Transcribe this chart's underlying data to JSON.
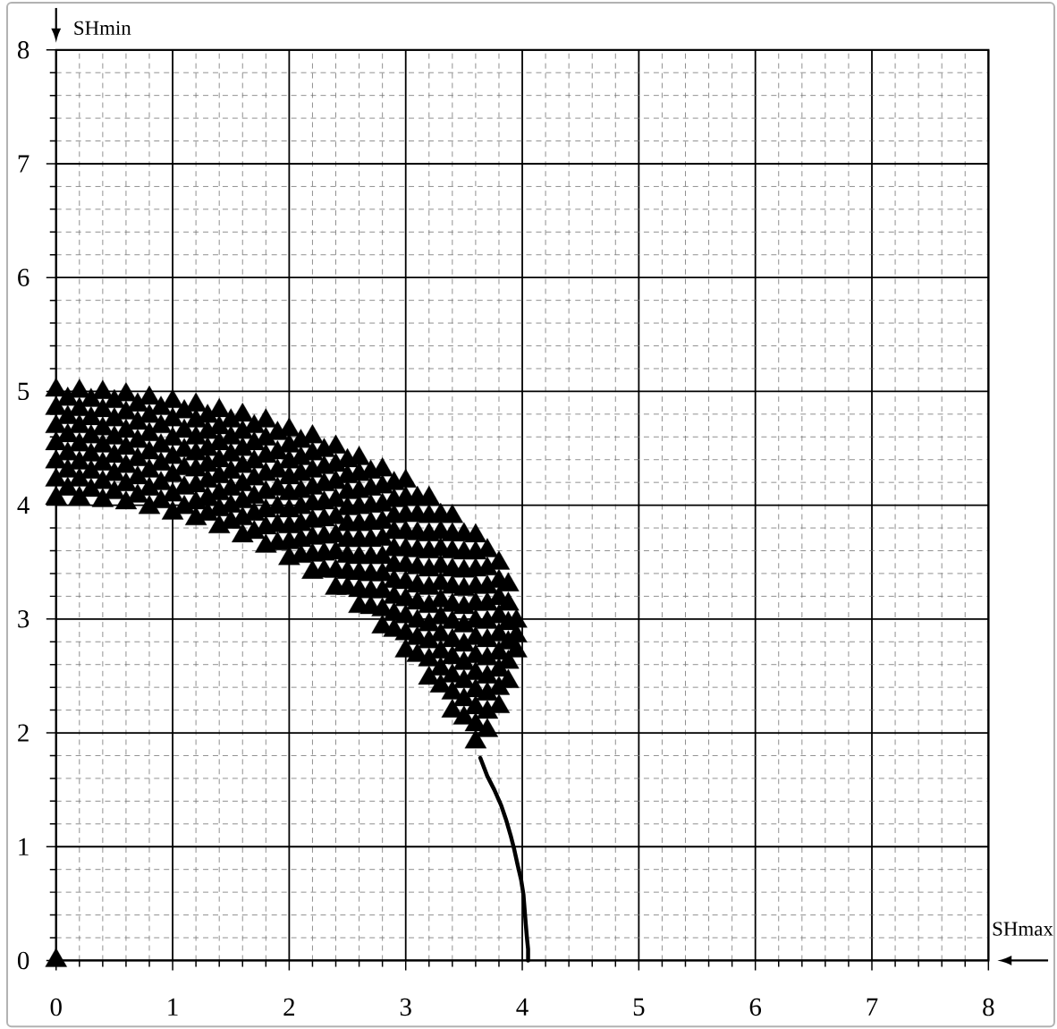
{
  "chart_data": {
    "type": "scatter",
    "xlabel": "SHmax",
    "ylabel": "SHmin",
    "xlim": [
      0,
      8
    ],
    "ylim": [
      0,
      8
    ],
    "xticks": [
      0,
      1,
      2,
      3,
      4,
      5,
      6,
      7,
      8
    ],
    "yticks": [
      0,
      1,
      2,
      3,
      4,
      5,
      6,
      7,
      8
    ],
    "grid": true,
    "series": [
      {
        "color": "#000000",
        "marker": "triangle",
        "x": [
          0,
          0,
          0,
          0,
          0,
          0,
          0,
          0,
          0.1,
          0.1,
          0.1,
          0.1,
          0.1,
          0.1,
          0.2,
          0.2,
          0.2,
          0.2,
          0.2,
          0.2,
          0.2,
          0.3,
          0.3,
          0.3,
          0.3,
          0.3,
          0.3,
          0.4,
          0.4,
          0.4,
          0.4,
          0.4,
          0.4,
          0.4,
          0.5,
          0.5,
          0.5,
          0.5,
          0.5,
          0.5,
          0.6,
          0.6,
          0.6,
          0.6,
          0.6,
          0.6,
          0.6,
          0.7,
          0.7,
          0.7,
          0.7,
          0.7,
          0.7,
          0.8,
          0.8,
          0.8,
          0.8,
          0.8,
          0.8,
          0.8,
          0.9,
          0.9,
          0.9,
          0.9,
          0.9,
          0.9,
          1,
          1,
          1,
          1,
          1,
          1,
          1,
          1.1,
          1.1,
          1.1,
          1.1,
          1.1,
          1.1,
          1.2,
          1.2,
          1.2,
          1.2,
          1.2,
          1.2,
          1.2,
          1.2,
          1.3,
          1.3,
          1.3,
          1.3,
          1.3,
          1.3,
          1.3,
          1.4,
          1.4,
          1.4,
          1.4,
          1.4,
          1.4,
          1.4,
          1.4,
          1.5,
          1.5,
          1.5,
          1.5,
          1.5,
          1.5,
          1.5,
          1.6,
          1.6,
          1.6,
          1.6,
          1.6,
          1.6,
          1.6,
          1.6,
          1.7,
          1.7,
          1.7,
          1.7,
          1.7,
          1.7,
          1.7,
          1.8,
          1.8,
          1.8,
          1.8,
          1.8,
          1.8,
          1.8,
          1.8,
          1.9,
          1.9,
          1.9,
          1.9,
          1.9,
          1.9,
          1.9,
          2,
          2,
          2,
          2,
          2,
          2,
          2,
          2,
          2,
          2.1,
          2.1,
          2.1,
          2.1,
          2.1,
          2.1,
          2.1,
          2.1,
          2.2,
          2.2,
          2.2,
          2.2,
          2.2,
          2.2,
          2.2,
          2.2,
          2.2,
          2.3,
          2.3,
          2.3,
          2.3,
          2.3,
          2.3,
          2.3,
          2.3,
          2.4,
          2.4,
          2.4,
          2.4,
          2.4,
          2.4,
          2.4,
          2.4,
          2.4,
          2.5,
          2.5,
          2.5,
          2.5,
          2.5,
          2.5,
          2.5,
          2.5,
          2.5,
          2.6,
          2.6,
          2.6,
          2.6,
          2.6,
          2.6,
          2.6,
          2.6,
          2.6,
          2.6,
          2.7,
          2.7,
          2.7,
          2.7,
          2.7,
          2.7,
          2.7,
          2.7,
          2.7,
          2.8,
          2.8,
          2.8,
          2.8,
          2.8,
          2.8,
          2.8,
          2.8,
          2.8,
          2.8,
          2.9,
          2.9,
          2.9,
          2.9,
          2.9,
          2.9,
          2.9,
          2.9,
          2.9,
          2.9,
          3,
          3,
          3,
          3,
          3,
          3,
          3,
          3,
          3,
          3,
          3,
          3.1,
          3.1,
          3.1,
          3.1,
          3.1,
          3.1,
          3.1,
          3.1,
          3.1,
          3.1,
          3.2,
          3.2,
          3.2,
          3.2,
          3.2,
          3.2,
          3.2,
          3.2,
          3.2,
          3.2,
          3.2,
          3.3,
          3.3,
          3.3,
          3.3,
          3.3,
          3.3,
          3.3,
          3.3,
          3.3,
          3.3,
          3.3,
          3.4,
          3.4,
          3.4,
          3.4,
          3.4,
          3.4,
          3.4,
          3.4,
          3.4,
          3.4,
          3.4,
          3.4,
          3.5,
          3.5,
          3.5,
          3.5,
          3.5,
          3.5,
          3.5,
          3.5,
          3.5,
          3.5,
          3.5,
          3.6,
          3.6,
          3.6,
          3.6,
          3.6,
          3.6,
          3.6,
          3.6,
          3.6,
          3.6,
          3.6,
          3.6,
          3.6,
          3.7,
          3.7,
          3.7,
          3.7,
          3.7,
          3.7,
          3.7,
          3.7,
          3.7,
          3.7,
          3.7,
          3.8,
          3.8,
          3.8,
          3.8,
          3.8,
          3.8,
          3.8,
          3.8,
          3.8,
          3.88,
          3.88,
          3.88,
          3.88,
          3.88,
          3.88,
          3.95,
          3.95,
          3.95
        ],
        "values": [
          0,
          4.06,
          4.22,
          4.38,
          4.54,
          4.69,
          4.85,
          5.01,
          4.14,
          4.3,
          4.45,
          4.61,
          4.77,
          4.93,
          4.06,
          4.22,
          4.37,
          4.53,
          4.69,
          4.84,
          5.0,
          4.13,
          4.29,
          4.44,
          4.6,
          4.76,
          4.92,
          4.04,
          4.2,
          4.36,
          4.52,
          4.67,
          4.83,
          4.99,
          4.11,
          4.27,
          4.43,
          4.59,
          4.75,
          4.91,
          4.02,
          4.18,
          4.34,
          4.5,
          4.65,
          4.81,
          4.97,
          4.08,
          4.24,
          4.4,
          4.56,
          4.72,
          4.88,
          3.98,
          4.14,
          4.3,
          4.46,
          4.62,
          4.78,
          4.94,
          4.03,
          4.19,
          4.36,
          4.52,
          4.69,
          4.85,
          3.93,
          4.09,
          4.26,
          4.42,
          4.58,
          4.75,
          4.91,
          3.98,
          4.15,
          4.32,
          4.48,
          4.65,
          4.82,
          3.88,
          4.02,
          4.17,
          4.31,
          4.45,
          4.59,
          4.74,
          4.88,
          3.92,
          4.06,
          4.21,
          4.35,
          4.49,
          4.64,
          4.78,
          3.81,
          3.96,
          4.1,
          4.25,
          4.39,
          4.54,
          4.68,
          4.83,
          3.85,
          3.99,
          4.14,
          4.29,
          4.44,
          4.59,
          4.74,
          3.73,
          3.88,
          4.03,
          4.18,
          4.34,
          4.49,
          4.64,
          4.79,
          3.76,
          3.92,
          4.07,
          4.23,
          4.38,
          4.54,
          4.69,
          3.64,
          3.8,
          3.95,
          4.11,
          4.27,
          4.43,
          4.58,
          4.74,
          3.66,
          3.82,
          3.98,
          4.14,
          4.3,
          4.46,
          4.63,
          3.53,
          3.67,
          3.81,
          3.95,
          4.1,
          4.24,
          4.38,
          4.52,
          4.66,
          3.55,
          3.69,
          3.83,
          3.98,
          4.12,
          4.27,
          4.41,
          4.56,
          3.41,
          3.56,
          3.71,
          3.86,
          4.01,
          4.15,
          4.3,
          4.45,
          4.6,
          3.42,
          3.57,
          3.72,
          3.87,
          4.02,
          4.18,
          4.33,
          4.48,
          3.27,
          3.42,
          3.58,
          3.73,
          3.89,
          4.04,
          4.2,
          4.35,
          4.51,
          3.27,
          3.41,
          3.55,
          3.69,
          3.83,
          3.97,
          4.11,
          4.25,
          4.39,
          3.11,
          3.25,
          3.4,
          3.54,
          3.69,
          3.83,
          3.98,
          4.12,
          4.27,
          4.41,
          3.1,
          3.24,
          3.39,
          3.54,
          3.69,
          3.84,
          3.99,
          4.14,
          4.29,
          2.93,
          3.08,
          3.24,
          3.39,
          3.54,
          3.7,
          3.85,
          4.0,
          4.16,
          4.31,
          2.9,
          3.04,
          3.19,
          3.33,
          3.47,
          3.61,
          3.76,
          3.9,
          4.04,
          4.19,
          2.72,
          2.87,
          3.02,
          3.17,
          3.32,
          3.47,
          3.61,
          3.76,
          3.91,
          4.06,
          4.21,
          2.68,
          2.83,
          2.98,
          3.14,
          3.29,
          3.45,
          3.6,
          3.75,
          3.91,
          4.06,
          2.48,
          2.64,
          2.8,
          2.95,
          3.11,
          3.27,
          3.43,
          3.59,
          3.74,
          3.9,
          4.06,
          2.41,
          2.56,
          2.71,
          2.86,
          3.01,
          3.16,
          3.31,
          3.46,
          3.61,
          3.76,
          3.91,
          2.19,
          2.35,
          2.5,
          2.66,
          2.81,
          2.97,
          3.12,
          3.28,
          3.43,
          3.59,
          3.74,
          3.9,
          2.13,
          2.29,
          2.45,
          2.61,
          2.77,
          2.94,
          3.1,
          3.26,
          3.42,
          3.58,
          3.74,
          1.92,
          2.07,
          2.22,
          2.37,
          2.52,
          2.67,
          2.83,
          2.98,
          3.13,
          3.28,
          3.43,
          3.58,
          3.73,
          2.02,
          2.18,
          2.34,
          2.49,
          2.65,
          2.81,
          2.97,
          3.13,
          3.28,
          3.44,
          3.6,
          2.23,
          2.39,
          2.55,
          2.7,
          2.86,
          3.02,
          3.18,
          3.33,
          3.49,
          2.45,
          2.62,
          2.79,
          2.96,
          3.13,
          3.3,
          2.72,
          2.85,
          2.98
        ]
      },
      {
        "type": "line",
        "color": "#000000",
        "x": [
          3.64,
          3.7,
          3.76,
          3.82,
          3.86,
          3.9,
          3.93,
          3.96,
          3.99,
          4.01,
          4.02,
          4.03,
          4.04,
          4.05,
          4.05
        ],
        "values": [
          1.78,
          1.62,
          1.5,
          1.36,
          1.24,
          1.1,
          0.98,
          0.84,
          0.71,
          0.58,
          0.45,
          0.32,
          0.2,
          0.1,
          0
        ]
      }
    ]
  }
}
